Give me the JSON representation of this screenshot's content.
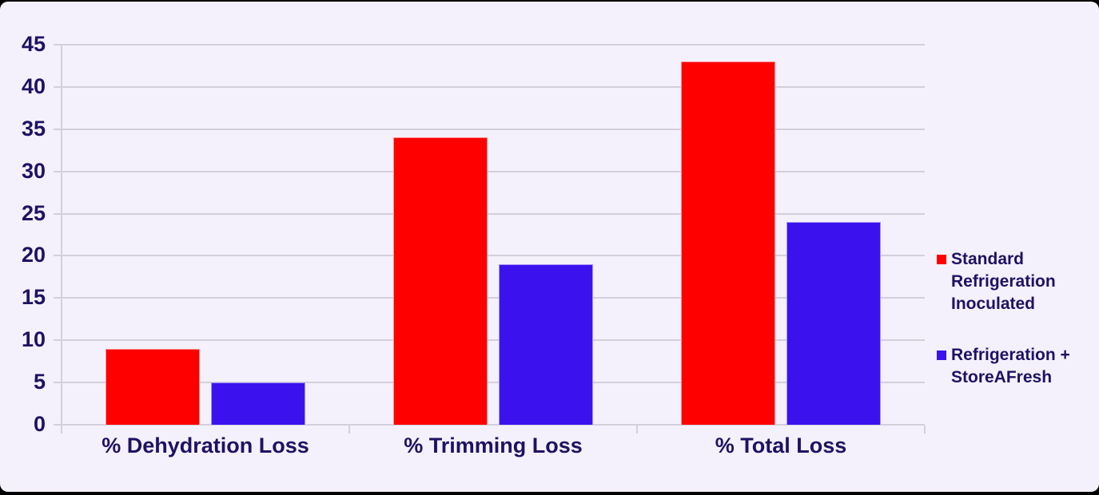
{
  "chart_data": {
    "type": "bar",
    "title": "",
    "categories": [
      "% Dehydration Loss",
      "% Trimming Loss",
      "% Total Loss"
    ],
    "series": [
      {
        "name": "Standard Refrigeration Inoculated",
        "color": "#FF0000",
        "values": [
          9,
          34,
          43
        ]
      },
      {
        "name": "Refrigeration + StoreAFresh",
        "color": "#3B12EE",
        "values": [
          5,
          19,
          24
        ]
      }
    ],
    "xlabel": "",
    "ylabel": "",
    "ylim": [
      0,
      45
    ],
    "ytick_step": 5,
    "grid": true,
    "legend_position": "right"
  },
  "style": {
    "background_color": "#F4F1FC",
    "outer_border_color": "#000000",
    "grid_color": "#D3D0DD",
    "text_color": "#1E1263"
  }
}
